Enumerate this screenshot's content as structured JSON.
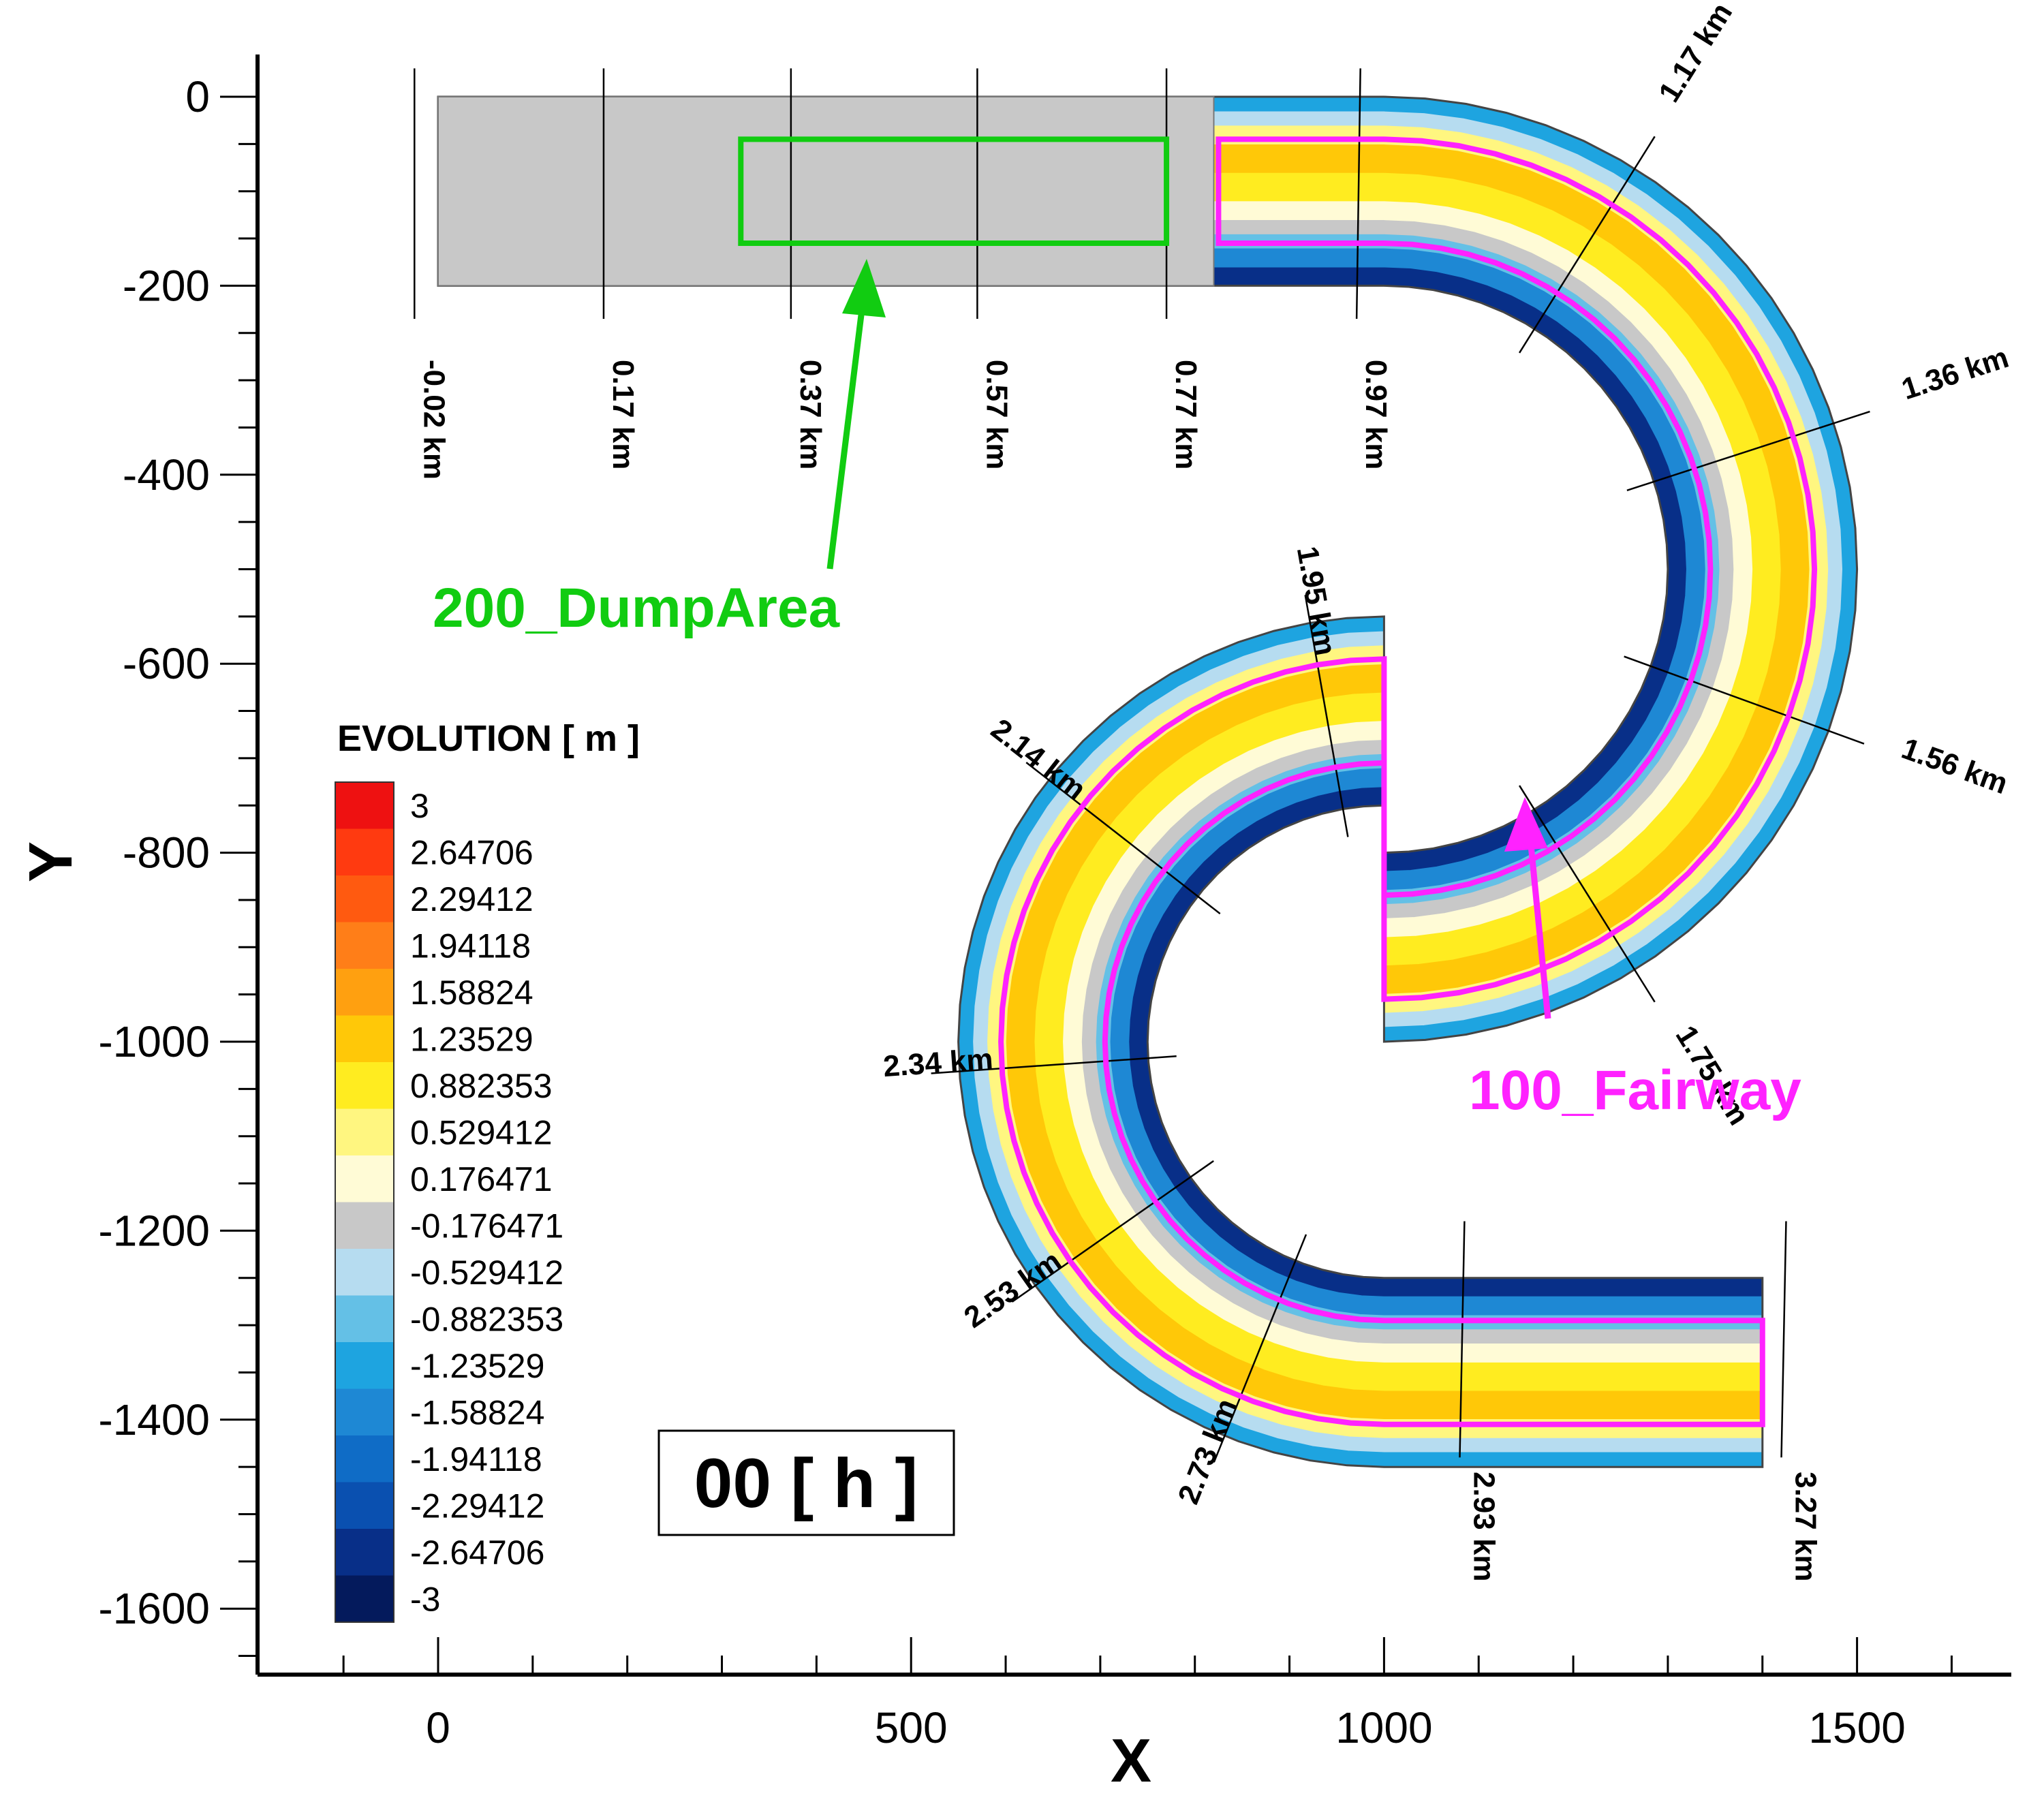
{
  "chart_data": {
    "type": "heatmap",
    "xlabel": "X",
    "ylabel": "Y",
    "xlim": [
      -190,
      1660
    ],
    "ylim": [
      -1665,
      45
    ],
    "x_ticks": [
      0,
      500,
      1000,
      1500
    ],
    "y_ticks": [
      0,
      -200,
      -400,
      -600,
      -800,
      -1000,
      -1200,
      -1400,
      -1600
    ],
    "x_tick_labels": [
      "0",
      "500",
      "1000",
      "1500"
    ],
    "y_tick_labels": [
      "0",
      "-200",
      "-400",
      "-600",
      "-800",
      "-1000",
      "-1200",
      "-1400",
      "-1600"
    ],
    "legend": {
      "title": "EVOLUTION  [ m ]",
      "levels": [
        "3",
        "2.64706",
        "2.29412",
        "1.94118",
        "1.58824",
        "1.23529",
        "0.882353",
        "0.529412",
        "0.176471",
        "-0.176471",
        "-0.529412",
        "-0.882353",
        "-1.23529",
        "-1.58824",
        "-1.94118",
        "-2.29412",
        "-2.64706",
        "-3"
      ],
      "colors": [
        "#ee1111",
        "#ff3a10",
        "#ff5a10",
        "#ff7e18",
        "#ffa010",
        "#ffc808",
        "#ffec20",
        "#fff680",
        "#fffbd6",
        "#c8c8c8",
        "#b6dcf0",
        "#64c0e6",
        "#1ea4e0",
        "#1e88d4",
        "#0f6cc6",
        "#0a50b0",
        "#082f88",
        "#041a5c"
      ],
      "placement": "left"
    },
    "time_label": "00 [ h ]",
    "regions": [
      {
        "name": "200_DumpArea",
        "x": [
          320,
          770
        ],
        "y": [
          -155,
          -45
        ],
        "color": "#11cc11"
      },
      {
        "name": "100_Fairway",
        "color": "#ff22ff"
      }
    ],
    "chainage_labels": [
      "-0.02 km",
      "0.17 km",
      "0.37 km",
      "0.57 km",
      "0.77 km",
      "0.97 km",
      "1.17 km",
      "1.36 km",
      "1.56 km",
      "1.75 km",
      "1.95 km",
      "2.14 km",
      "2.34 km",
      "2.53 km",
      "2.73 km",
      "2.93 km",
      "3.27 km"
    ]
  },
  "colors": {
    "dump_area": "#11cc11",
    "fairway": "#ff22ff",
    "grey_zone": "#c8c8c8"
  }
}
